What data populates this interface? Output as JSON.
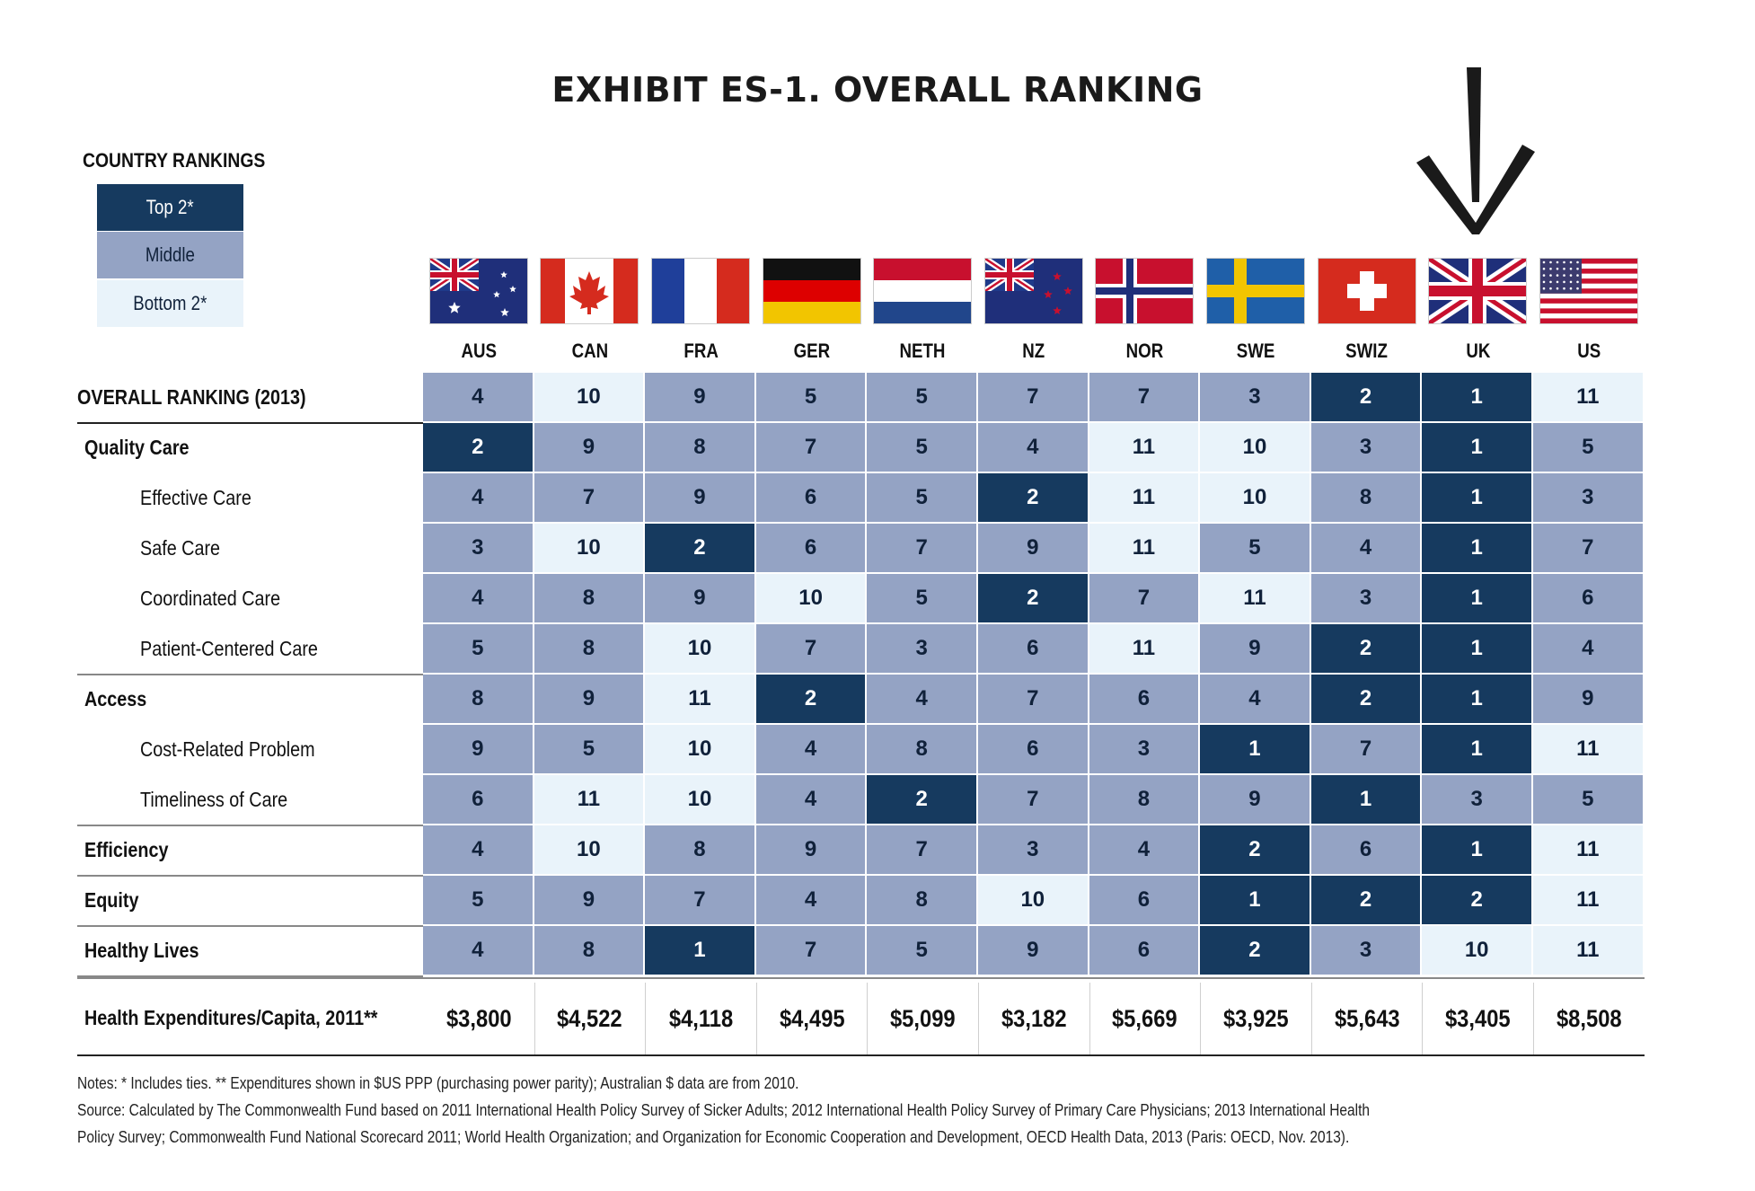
{
  "title": "EXHIBIT ES-1. OVERALL RANKING",
  "legend": {
    "title": "COUNTRY RANKINGS",
    "items": [
      {
        "label": "Top 2*",
        "color": "#163a5f"
      },
      {
        "label": "Middle",
        "color": "#94a3c4"
      },
      {
        "label": "Bottom 2*",
        "color": "#e9f3fa"
      }
    ]
  },
  "countries": [
    "AUS",
    "CAN",
    "FRA",
    "GER",
    "NETH",
    "NZ",
    "NOR",
    "SWE",
    "SWIZ",
    "UK",
    "US"
  ],
  "rows": [
    {
      "label": "OVERALL RANKING (2013)",
      "style": "bold"
    },
    {
      "label": "Quality Care",
      "style": "bold"
    },
    {
      "label": "Effective Care",
      "style": "indent"
    },
    {
      "label": "Safe Care",
      "style": "indent"
    },
    {
      "label": "Coordinated Care",
      "style": "indent"
    },
    {
      "label": "Patient-Centered Care",
      "style": "indent"
    },
    {
      "label": "Access",
      "style": "bold"
    },
    {
      "label": "Cost-Related Problem",
      "style": "indent"
    },
    {
      "label": "Timeliness of Care",
      "style": "indent"
    },
    {
      "label": "Efficiency",
      "style": "bold"
    },
    {
      "label": "Equity",
      "style": "bold"
    },
    {
      "label": "Healthy Lives",
      "style": "bold"
    }
  ],
  "expenditures": {
    "label": "Health Expenditures/Capita, 2011**",
    "values": [
      "$3,800",
      "$4,522",
      "$4,118",
      "$4,495",
      "$5,099",
      "$3,182",
      "$5,669",
      "$3,925",
      "$5,643",
      "$3,405",
      "$8,508"
    ]
  },
  "notes": [
    "Notes: * Includes ties. ** Expenditures shown in $US PPP (purchasing power parity); Australian $ data are from 2010.",
    "Source: Calculated by The Commonwealth Fund based on 2011 International Health Policy Survey of Sicker Adults; 2012 International Health Policy Survey of Primary Care Physicians; 2013 International Health",
    "Policy Survey; Commonwealth Fund National Scorecard 2011; World Health Organization; and Organization for Economic Cooperation and Development, OECD Health Data, 2013 (Paris: OECD, Nov. 2013)."
  ],
  "chart_data": {
    "type": "table",
    "title": "EXHIBIT ES-1. OVERALL RANKING",
    "columns": [
      "AUS",
      "CAN",
      "FRA",
      "GER",
      "NETH",
      "NZ",
      "NOR",
      "SWE",
      "SWIZ",
      "UK",
      "US"
    ],
    "rows": [
      {
        "label": "OVERALL RANKING (2013)",
        "values": [
          4,
          10,
          9,
          5,
          5,
          7,
          7,
          3,
          2,
          1,
          11
        ],
        "tiers": [
          "mid",
          "bot",
          "mid",
          "mid",
          "mid",
          "mid",
          "mid",
          "mid",
          "top",
          "top",
          "bot"
        ]
      },
      {
        "label": "Quality Care",
        "values": [
          2,
          9,
          8,
          7,
          5,
          4,
          11,
          10,
          3,
          1,
          5
        ],
        "tiers": [
          "top",
          "mid",
          "mid",
          "mid",
          "mid",
          "mid",
          "bot",
          "bot",
          "mid",
          "top",
          "mid"
        ]
      },
      {
        "label": "Effective Care",
        "values": [
          4,
          7,
          9,
          6,
          5,
          2,
          11,
          10,
          8,
          1,
          3
        ],
        "tiers": [
          "mid",
          "mid",
          "mid",
          "mid",
          "mid",
          "top",
          "bot",
          "bot",
          "mid",
          "top",
          "mid"
        ]
      },
      {
        "label": "Safe Care",
        "values": [
          3,
          10,
          2,
          6,
          7,
          9,
          11,
          5,
          4,
          1,
          7
        ],
        "tiers": [
          "mid",
          "bot",
          "top",
          "mid",
          "mid",
          "mid",
          "bot",
          "mid",
          "mid",
          "top",
          "mid"
        ]
      },
      {
        "label": "Coordinated Care",
        "values": [
          4,
          8,
          9,
          10,
          5,
          2,
          7,
          11,
          3,
          1,
          6
        ],
        "tiers": [
          "mid",
          "mid",
          "mid",
          "bot",
          "mid",
          "top",
          "mid",
          "bot",
          "mid",
          "top",
          "mid"
        ]
      },
      {
        "label": "Patient-Centered Care",
        "values": [
          5,
          8,
          10,
          7,
          3,
          6,
          11,
          9,
          2,
          1,
          4
        ],
        "tiers": [
          "mid",
          "mid",
          "bot",
          "mid",
          "mid",
          "mid",
          "bot",
          "mid",
          "top",
          "top",
          "mid"
        ]
      },
      {
        "label": "Access",
        "values": [
          8,
          9,
          11,
          2,
          4,
          7,
          6,
          4,
          2,
          1,
          9
        ],
        "tiers": [
          "mid",
          "mid",
          "bot",
          "top",
          "mid",
          "mid",
          "mid",
          "mid",
          "top",
          "top",
          "mid"
        ]
      },
      {
        "label": "Cost-Related Problem",
        "values": [
          9,
          5,
          10,
          4,
          8,
          6,
          3,
          1,
          7,
          1,
          11
        ],
        "tiers": [
          "mid",
          "mid",
          "bot",
          "mid",
          "mid",
          "mid",
          "mid",
          "top",
          "mid",
          "top",
          "bot"
        ]
      },
      {
        "label": "Timeliness of Care",
        "values": [
          6,
          11,
          10,
          4,
          2,
          7,
          8,
          9,
          1,
          3,
          5
        ],
        "tiers": [
          "mid",
          "bot",
          "bot",
          "mid",
          "top",
          "mid",
          "mid",
          "mid",
          "top",
          "mid",
          "mid"
        ]
      },
      {
        "label": "Efficiency",
        "values": [
          4,
          10,
          8,
          9,
          7,
          3,
          4,
          2,
          6,
          1,
          11
        ],
        "tiers": [
          "mid",
          "bot",
          "mid",
          "mid",
          "mid",
          "mid",
          "mid",
          "top",
          "mid",
          "top",
          "bot"
        ]
      },
      {
        "label": "Equity",
        "values": [
          5,
          9,
          7,
          4,
          8,
          10,
          6,
          1,
          2,
          2,
          11
        ],
        "tiers": [
          "mid",
          "mid",
          "mid",
          "mid",
          "mid",
          "bot",
          "mid",
          "top",
          "top",
          "top",
          "bot"
        ]
      },
      {
        "label": "Healthy Lives",
        "values": [
          4,
          8,
          1,
          7,
          5,
          9,
          6,
          2,
          3,
          10,
          11
        ],
        "tiers": [
          "mid",
          "mid",
          "top",
          "mid",
          "mid",
          "mid",
          "mid",
          "top",
          "mid",
          "bot",
          "bot"
        ]
      }
    ]
  }
}
